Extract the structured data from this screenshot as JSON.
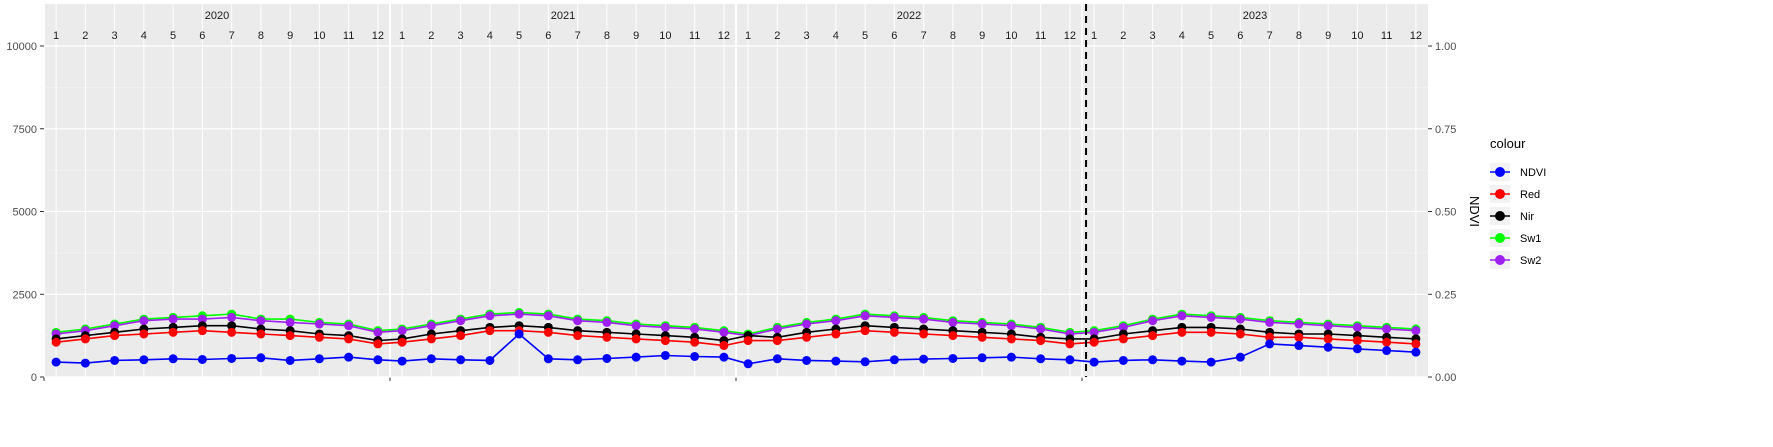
{
  "chart_data": {
    "type": "line",
    "title": "",
    "xlabel": "",
    "ylabel_left": "",
    "ylabel_right": "NDVI",
    "y_left": {
      "lim": [
        0,
        10000
      ],
      "ticks": [
        0,
        2500,
        5000,
        7500,
        10000
      ],
      "tick_labels": [
        "0",
        "2500",
        "5000",
        "7500",
        "10000"
      ]
    },
    "y_right": {
      "lim": [
        0,
        1
      ],
      "ticks": [
        0,
        0.25,
        0.5,
        0.75,
        1.0
      ],
      "tick_labels": [
        "0.00",
        "0.25",
        "0.50",
        "0.75",
        "1.00"
      ]
    },
    "x": {
      "start": "2020-01",
      "end": "2023-12",
      "unit": "month"
    },
    "years": [
      "2020",
      "2021",
      "2022",
      "2023"
    ],
    "months": [
      "1",
      "2",
      "3",
      "4",
      "5",
      "6",
      "7",
      "8",
      "9",
      "10",
      "11",
      "12"
    ],
    "vline": {
      "date": "2023-01",
      "style": "dashed",
      "color": "#000000"
    },
    "grid": true,
    "legend": {
      "title": "colour",
      "position": "right",
      "items": [
        {
          "name": "NDVI",
          "color": "#0000ff"
        },
        {
          "name": "Red",
          "color": "#ff0000"
        },
        {
          "name": "Nir",
          "color": "#000000"
        },
        {
          "name": "Sw1",
          "color": "#00ff00"
        },
        {
          "name": "Sw2",
          "color": "#a020f0"
        }
      ]
    },
    "series": [
      {
        "name": "Sw1",
        "color": "#00ff00",
        "axis": "left",
        "points": [
          [
            "2020-01",
            1350
          ],
          [
            "2020-02",
            1450
          ],
          [
            "2020-03",
            1600
          ],
          [
            "2020-04",
            1750
          ],
          [
            "2020-05",
            1800
          ],
          [
            "2020-06",
            1850
          ],
          [
            "2020-07",
            1900
          ],
          [
            "2020-08",
            1750
          ],
          [
            "2020-09",
            1750
          ],
          [
            "2020-10",
            1650
          ],
          [
            "2020-11",
            1600
          ],
          [
            "2020-12",
            1400
          ],
          [
            "2021-01",
            1450
          ],
          [
            "2021-02",
            1600
          ],
          [
            "2021-03",
            1750
          ],
          [
            "2021-04",
            1900
          ],
          [
            "2021-05",
            1950
          ],
          [
            "2021-06",
            1900
          ],
          [
            "2021-07",
            1750
          ],
          [
            "2021-08",
            1700
          ],
          [
            "2021-09",
            1600
          ],
          [
            "2021-10",
            1550
          ],
          [
            "2021-11",
            1500
          ],
          [
            "2021-12",
            1400
          ],
          [
            "2022-01",
            1300
          ],
          [
            "2022-02",
            1500
          ],
          [
            "2022-03",
            1650
          ],
          [
            "2022-04",
            1750
          ],
          [
            "2022-05",
            1900
          ],
          [
            "2022-06",
            1850
          ],
          [
            "2022-07",
            1800
          ],
          [
            "2022-08",
            1700
          ],
          [
            "2022-09",
            1650
          ],
          [
            "2022-10",
            1600
          ],
          [
            "2022-11",
            1500
          ],
          [
            "2022-12",
            1350
          ],
          [
            "2023-01",
            1400
          ],
          [
            "2023-02",
            1550
          ],
          [
            "2023-03",
            1750
          ],
          [
            "2023-04",
            1900
          ],
          [
            "2023-05",
            1850
          ],
          [
            "2023-06",
            1800
          ],
          [
            "2023-07",
            1700
          ],
          [
            "2023-08",
            1650
          ],
          [
            "2023-09",
            1600
          ],
          [
            "2023-10",
            1550
          ],
          [
            "2023-11",
            1500
          ],
          [
            "2023-12",
            1450
          ]
        ]
      },
      {
        "name": "Sw2",
        "color": "#a020f0",
        "axis": "left",
        "points": [
          [
            "2020-01",
            1300
          ],
          [
            "2020-02",
            1400
          ],
          [
            "2020-03",
            1550
          ],
          [
            "2020-04",
            1700
          ],
          [
            "2020-05",
            1750
          ],
          [
            "2020-06",
            1750
          ],
          [
            "2020-07",
            1800
          ],
          [
            "2020-08",
            1700
          ],
          [
            "2020-09",
            1650
          ],
          [
            "2020-10",
            1600
          ],
          [
            "2020-11",
            1550
          ],
          [
            "2020-12",
            1350
          ],
          [
            "2021-01",
            1400
          ],
          [
            "2021-02",
            1550
          ],
          [
            "2021-03",
            1700
          ],
          [
            "2021-04",
            1850
          ],
          [
            "2021-05",
            1900
          ],
          [
            "2021-06",
            1850
          ],
          [
            "2021-07",
            1700
          ],
          [
            "2021-08",
            1650
          ],
          [
            "2021-09",
            1550
          ],
          [
            "2021-10",
            1500
          ],
          [
            "2021-11",
            1450
          ],
          [
            "2021-12",
            1350
          ],
          [
            "2022-01",
            1250
          ],
          [
            "2022-02",
            1450
          ],
          [
            "2022-03",
            1600
          ],
          [
            "2022-04",
            1700
          ],
          [
            "2022-05",
            1850
          ],
          [
            "2022-06",
            1800
          ],
          [
            "2022-07",
            1750
          ],
          [
            "2022-08",
            1650
          ],
          [
            "2022-09",
            1600
          ],
          [
            "2022-10",
            1550
          ],
          [
            "2022-11",
            1450
          ],
          [
            "2022-12",
            1300
          ],
          [
            "2023-01",
            1350
          ],
          [
            "2023-02",
            1500
          ],
          [
            "2023-03",
            1700
          ],
          [
            "2023-04",
            1850
          ],
          [
            "2023-05",
            1800
          ],
          [
            "2023-06",
            1750
          ],
          [
            "2023-07",
            1650
          ],
          [
            "2023-08",
            1600
          ],
          [
            "2023-09",
            1550
          ],
          [
            "2023-10",
            1500
          ],
          [
            "2023-11",
            1450
          ],
          [
            "2023-12",
            1400
          ]
        ]
      },
      {
        "name": "Nir",
        "color": "#000000",
        "axis": "left",
        "points": [
          [
            "2020-01",
            1150
          ],
          [
            "2020-02",
            1250
          ],
          [
            "2020-03",
            1350
          ],
          [
            "2020-04",
            1450
          ],
          [
            "2020-05",
            1500
          ],
          [
            "2020-06",
            1550
          ],
          [
            "2020-07",
            1550
          ],
          [
            "2020-08",
            1450
          ],
          [
            "2020-09",
            1400
          ],
          [
            "2020-10",
            1300
          ],
          [
            "2020-11",
            1250
          ],
          [
            "2020-12",
            1100
          ],
          [
            "2021-01",
            1150
          ],
          [
            "2021-02",
            1300
          ],
          [
            "2021-03",
            1400
          ],
          [
            "2021-04",
            1500
          ],
          [
            "2021-05",
            1550
          ],
          [
            "2021-06",
            1500
          ],
          [
            "2021-07",
            1400
          ],
          [
            "2021-08",
            1350
          ],
          [
            "2021-09",
            1300
          ],
          [
            "2021-10",
            1250
          ],
          [
            "2021-11",
            1200
          ],
          [
            "2021-12",
            1100
          ],
          [
            "2022-01",
            1250
          ],
          [
            "2022-02",
            1200
          ],
          [
            "2022-03",
            1350
          ],
          [
            "2022-04",
            1450
          ],
          [
            "2022-05",
            1550
          ],
          [
            "2022-06",
            1500
          ],
          [
            "2022-07",
            1450
          ],
          [
            "2022-08",
            1400
          ],
          [
            "2022-09",
            1350
          ],
          [
            "2022-10",
            1300
          ],
          [
            "2022-11",
            1200
          ],
          [
            "2022-12",
            1150
          ],
          [
            "2023-01",
            1150
          ],
          [
            "2023-02",
            1300
          ],
          [
            "2023-03",
            1400
          ],
          [
            "2023-04",
            1500
          ],
          [
            "2023-05",
            1500
          ],
          [
            "2023-06",
            1450
          ],
          [
            "2023-07",
            1350
          ],
          [
            "2023-08",
            1300
          ],
          [
            "2023-09",
            1300
          ],
          [
            "2023-10",
            1250
          ],
          [
            "2023-11",
            1200
          ],
          [
            "2023-12",
            1150
          ]
        ]
      },
      {
        "name": "Red",
        "color": "#ff0000",
        "axis": "left",
        "points": [
          [
            "2020-01",
            1050
          ],
          [
            "2020-02",
            1150
          ],
          [
            "2020-03",
            1250
          ],
          [
            "2020-04",
            1300
          ],
          [
            "2020-05",
            1350
          ],
          [
            "2020-06",
            1400
          ],
          [
            "2020-07",
            1350
          ],
          [
            "2020-08",
            1300
          ],
          [
            "2020-09",
            1250
          ],
          [
            "2020-10",
            1200
          ],
          [
            "2020-11",
            1150
          ],
          [
            "2020-12",
            1000
          ],
          [
            "2021-01",
            1050
          ],
          [
            "2021-02",
            1150
          ],
          [
            "2021-03",
            1250
          ],
          [
            "2021-04",
            1400
          ],
          [
            "2021-05",
            1400
          ],
          [
            "2021-06",
            1350
          ],
          [
            "2021-07",
            1250
          ],
          [
            "2021-08",
            1200
          ],
          [
            "2021-09",
            1150
          ],
          [
            "2021-10",
            1100
          ],
          [
            "2021-11",
            1050
          ],
          [
            "2021-12",
            950
          ],
          [
            "2022-01",
            1100
          ],
          [
            "2022-02",
            1100
          ],
          [
            "2022-03",
            1200
          ],
          [
            "2022-04",
            1300
          ],
          [
            "2022-05",
            1400
          ],
          [
            "2022-06",
            1350
          ],
          [
            "2022-07",
            1300
          ],
          [
            "2022-08",
            1250
          ],
          [
            "2022-09",
            1200
          ],
          [
            "2022-10",
            1150
          ],
          [
            "2022-11",
            1100
          ],
          [
            "2022-12",
            1000
          ],
          [
            "2023-01",
            1050
          ],
          [
            "2023-02",
            1150
          ],
          [
            "2023-03",
            1250
          ],
          [
            "2023-04",
            1350
          ],
          [
            "2023-05",
            1350
          ],
          [
            "2023-06",
            1300
          ],
          [
            "2023-07",
            1200
          ],
          [
            "2023-08",
            1200
          ],
          [
            "2023-09",
            1150
          ],
          [
            "2023-10",
            1100
          ],
          [
            "2023-11",
            1050
          ],
          [
            "2023-12",
            1000
          ]
        ]
      },
      {
        "name": "NDVI",
        "color": "#0000ff",
        "axis": "left",
        "points": [
          [
            "2020-01",
            450
          ],
          [
            "2020-02",
            420
          ],
          [
            "2020-03",
            500
          ],
          [
            "2020-04",
            520
          ],
          [
            "2020-05",
            550
          ],
          [
            "2020-06",
            530
          ],
          [
            "2020-07",
            560
          ],
          [
            "2020-08",
            580
          ],
          [
            "2020-09",
            500
          ],
          [
            "2020-10",
            550
          ],
          [
            "2020-11",
            600
          ],
          [
            "2020-12",
            520
          ],
          [
            "2021-01",
            480
          ],
          [
            "2021-02",
            550
          ],
          [
            "2021-03",
            520
          ],
          [
            "2021-04",
            500
          ],
          [
            "2021-05",
            1300
          ],
          [
            "2021-06",
            550
          ],
          [
            "2021-07",
            520
          ],
          [
            "2021-08",
            560
          ],
          [
            "2021-09",
            600
          ],
          [
            "2021-10",
            650
          ],
          [
            "2021-11",
            620
          ],
          [
            "2021-12",
            600
          ],
          [
            "2022-01",
            400
          ],
          [
            "2022-02",
            550
          ],
          [
            "2022-03",
            500
          ],
          [
            "2022-04",
            480
          ],
          [
            "2022-05",
            460
          ],
          [
            "2022-06",
            520
          ],
          [
            "2022-07",
            540
          ],
          [
            "2022-08",
            560
          ],
          [
            "2022-09",
            580
          ],
          [
            "2022-10",
            600
          ],
          [
            "2022-11",
            550
          ],
          [
            "2022-12",
            520
          ],
          [
            "2023-01",
            450
          ],
          [
            "2023-02",
            500
          ],
          [
            "2023-03",
            520
          ],
          [
            "2023-04",
            480
          ],
          [
            "2023-05",
            450
          ],
          [
            "2023-06",
            600
          ],
          [
            "2023-07",
            1000
          ],
          [
            "2023-08",
            950
          ],
          [
            "2023-09",
            900
          ],
          [
            "2023-10",
            850
          ],
          [
            "2023-11",
            800
          ],
          [
            "2023-12",
            750
          ]
        ]
      }
    ]
  }
}
